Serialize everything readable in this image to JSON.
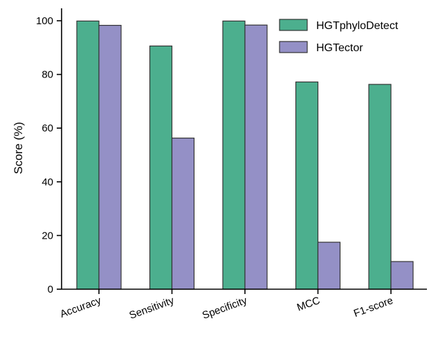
{
  "chart_data": {
    "type": "bar",
    "categories": [
      "Accuracy",
      "Sensitivity",
      "Specificity",
      "MCC",
      "F1-score"
    ],
    "series": [
      {
        "name": "HGTphyloDetect",
        "color": "#4caf8e",
        "values": [
          99.9,
          90.6,
          99.9,
          77.2,
          76.3
        ]
      },
      {
        "name": "HGTector",
        "color": "#9490c6",
        "values": [
          98.3,
          56.3,
          98.4,
          17.5,
          10.3
        ]
      }
    ],
    "title": "",
    "xlabel": "",
    "ylabel": "Score (%)",
    "ylim": [
      0,
      100
    ],
    "yticks": [
      0,
      20,
      40,
      60,
      80,
      100
    ],
    "grid": false,
    "legend": "top-right"
  }
}
